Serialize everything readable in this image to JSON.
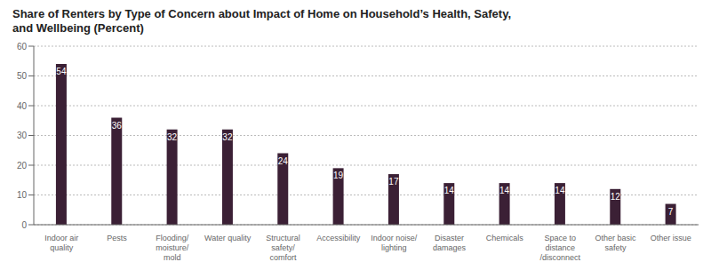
{
  "chart_data": {
    "type": "bar",
    "title": "Share of Renters by Type of Concern about Impact of Home on Household’s Health, Safety,\nand Wellbeing (Percent)",
    "categories": [
      "Indoor air\nquality",
      "Pests",
      "Flooding/\nmoisture/\nmold",
      "Water quality",
      "Structural\nsafety/\ncomfort",
      "Accessibility",
      "Indoor noise/\nlighting",
      "Disaster\ndamages",
      "Chemicals",
      "Space to\ndistance\n/disconnect",
      "Other basic\nsafety",
      "Other issue"
    ],
    "values": [
      54,
      36,
      32,
      32,
      24,
      19,
      17,
      14,
      14,
      14,
      12,
      7
    ],
    "color": "#3b2035",
    "ylim": [
      0,
      60
    ],
    "yticks": [
      0,
      10,
      20,
      30,
      40,
      50,
      60
    ],
    "grid": true,
    "data_labels": true
  }
}
